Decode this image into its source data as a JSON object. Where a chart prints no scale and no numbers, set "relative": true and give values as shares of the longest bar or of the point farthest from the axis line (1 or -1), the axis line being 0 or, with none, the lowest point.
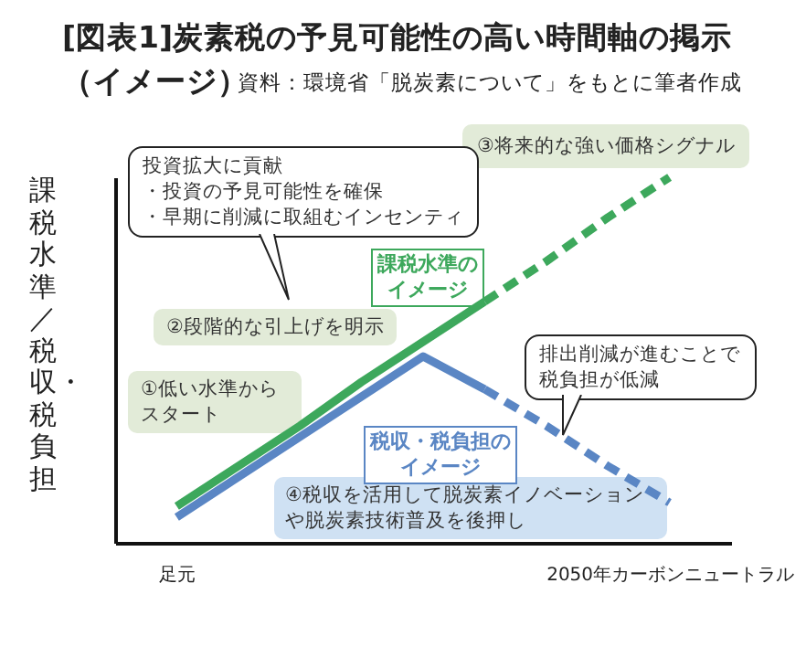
{
  "chart_data": {
    "type": "line",
    "title": "[図表1]炭素税の予見可能性の高い時間軸の掲示（イメージ）",
    "ylabel": "課税水準／税収・税負担",
    "relative": true,
    "categories": [
      "足元",
      null,
      null,
      null,
      null,
      null,
      null,
      null,
      "2050年カーボンニュートラル"
    ],
    "series": [
      {
        "name": "課税水準のイメージ",
        "color": "#3da85c",
        "values": [
          0.1,
          0.21,
          0.32,
          0.44,
          0.55,
          0.66,
          null,
          null,
          null
        ]
      },
      {
        "color": "#3da85c",
        "line_style": "dashed",
        "values": [
          null,
          null,
          null,
          null,
          null,
          0.66,
          0.77,
          0.89,
          1
        ]
      },
      {
        "name": "税収・税負担のイメージ",
        "color": "#5a86c4",
        "values": [
          0.07,
          0.18,
          0.29,
          0.4,
          0.51,
          0.42,
          null,
          null,
          null
        ]
      },
      {
        "color": "#5a86c4",
        "line_style": "dashed",
        "values": [
          null,
          null,
          null,
          null,
          null,
          0.42,
          0.32,
          0.21,
          0.11
        ]
      }
    ],
    "annotations": [
      "資料：環境省「脱炭素について」をもとに筆者作成",
      "①低い水準からスタート",
      "②段階的な引上げを明示",
      "③将来的な強い価格シグナル",
      "④税収を活用して脱炭素イノベーションや脱炭素技術普及を後押し",
      "投資拡大に貢献",
      "・投資の予見可能性を確保",
      "・早期に削減に取組むインセンティ",
      "排出削減が進むことで税負担が低減"
    ]
  }
}
